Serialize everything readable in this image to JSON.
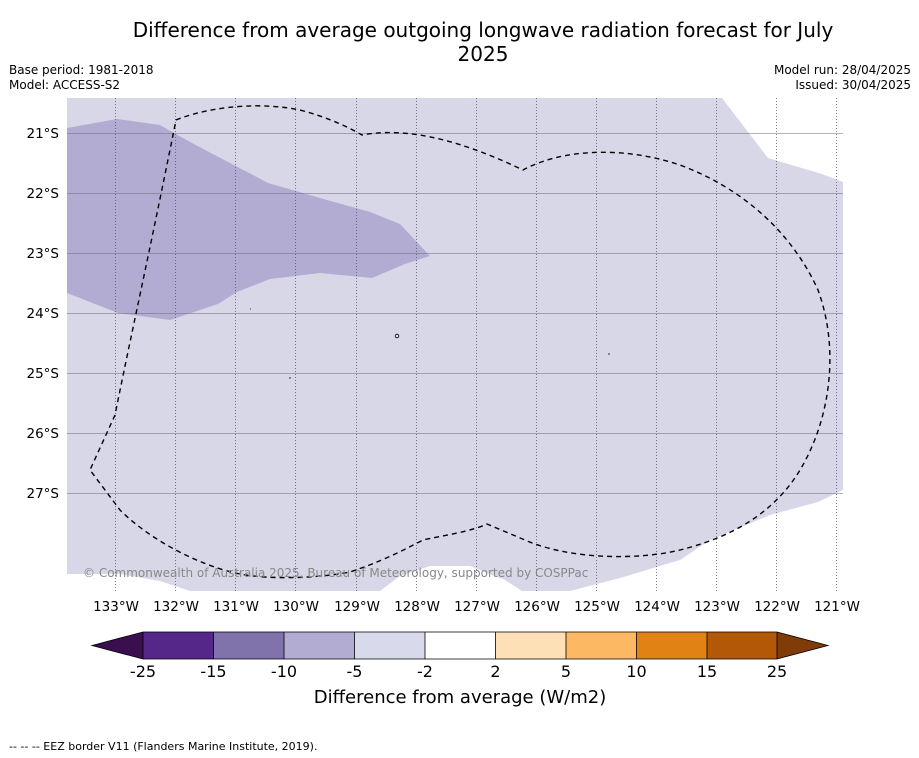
{
  "title": "Difference from average outgoing longwave radiation forecast for July 2025",
  "base_period": "Base period: 1981-2018",
  "model": "Model: ACCESS-S2",
  "model_run": "Model run: 28/04/2025",
  "issued": "Issued: 30/04/2025",
  "copyright": "© Commonwealth of Australia 2025, Bureau of Meteorology, supported by COSPPac",
  "footer_note": "--  --  -- EEZ border V11 (Flanders Marine Institute, 2019).",
  "map": {
    "lat_labels": [
      "21°S",
      "22°S",
      "23°S",
      "24°S",
      "25°S",
      "26°S",
      "27°S"
    ],
    "lon_labels": [
      "133°W",
      "132°W",
      "131°W",
      "130°W",
      "129°W",
      "128°W",
      "127°W",
      "126°W",
      "125°W",
      "124°W",
      "123°W",
      "122°W",
      "121°W"
    ],
    "fill_colors": {
      "light_purple": "#d7d7e8",
      "medium_purple": "#b2acd2"
    }
  },
  "colorbar": {
    "title": "Difference from average (W/m2)",
    "tick_labels": [
      "-25",
      "-15",
      "-10",
      "-5",
      "-2",
      "2",
      "5",
      "10",
      "15",
      "25"
    ],
    "colors": [
      "#3b0f4f",
      "#542788",
      "#8073ac",
      "#b2abd2",
      "#d8daeb",
      "#ffffff",
      "#fee0b6",
      "#fdb863",
      "#e08214",
      "#b35806",
      "#7f3b08"
    ]
  }
}
